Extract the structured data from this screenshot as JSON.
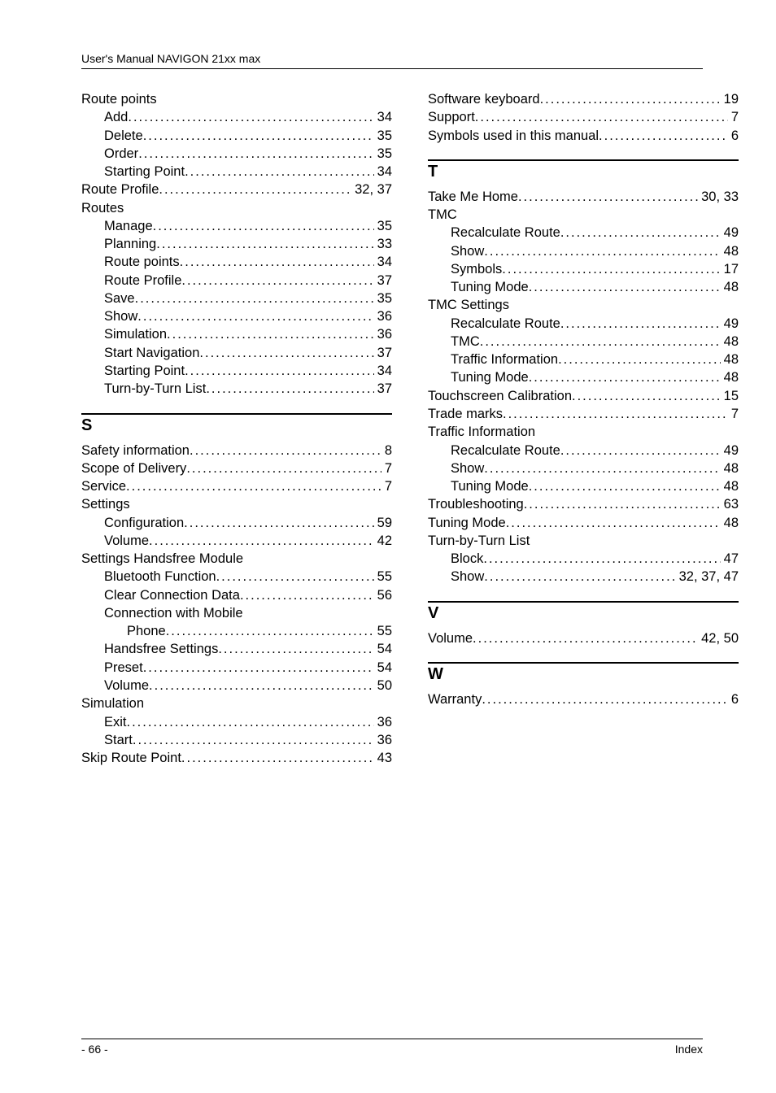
{
  "header": {
    "text": "User's Manual NAVIGON 21xx max"
  },
  "footer": {
    "left": "- 66 -",
    "right": "Index"
  },
  "left_column": {
    "blocks": [
      {
        "type": "group",
        "heading": "Route points",
        "entries": [
          {
            "label": "Add",
            "page": "34",
            "indent": 1
          },
          {
            "label": "Delete",
            "page": "35",
            "indent": 1
          },
          {
            "label": "Order",
            "page": "35",
            "indent": 1
          },
          {
            "label": "Starting Point",
            "page": "34",
            "indent": 1
          }
        ]
      },
      {
        "type": "entries",
        "entries": [
          {
            "label": "Route Profile",
            "page": "32, 37",
            "indent": 0
          }
        ]
      },
      {
        "type": "group",
        "heading": "Routes",
        "entries": [
          {
            "label": "Manage",
            "page": "35",
            "indent": 1
          },
          {
            "label": "Planning",
            "page": "33",
            "indent": 1
          },
          {
            "label": "Route points",
            "page": "34",
            "indent": 1
          },
          {
            "label": "Route Profile",
            "page": "37",
            "indent": 1
          },
          {
            "label": "Save",
            "page": "35",
            "indent": 1
          },
          {
            "label": "Show",
            "page": "36",
            "indent": 1
          },
          {
            "label": "Simulation",
            "page": "36",
            "indent": 1
          },
          {
            "label": "Start Navigation",
            "page": "37",
            "indent": 1
          },
          {
            "label": "Starting Point",
            "page": "34",
            "indent": 1
          },
          {
            "label": "Turn-by-Turn List",
            "page": "37",
            "indent": 1
          }
        ]
      },
      {
        "type": "section",
        "letter": "S",
        "children": [
          {
            "type": "entries",
            "entries": [
              {
                "label": "Safety information",
                "page": "8",
                "indent": 0
              },
              {
                "label": "Scope of Delivery",
                "page": "7",
                "indent": 0
              },
              {
                "label": "Service",
                "page": "7",
                "indent": 0
              }
            ]
          },
          {
            "type": "group",
            "heading": "Settings",
            "entries": [
              {
                "label": "Configuration",
                "page": "59",
                "indent": 1
              },
              {
                "label": "Volume",
                "page": "42",
                "indent": 1
              }
            ]
          },
          {
            "type": "group",
            "heading": "Settings Handsfree Module",
            "entries": [
              {
                "label": "Bluetooth Function",
                "page": "55",
                "indent": 1
              },
              {
                "label": "Clear Connection Data",
                "page": "56",
                "indent": 1
              },
              {
                "label": "Connection with Mobile",
                "page": "",
                "indent": 1,
                "nodots": true
              },
              {
                "label": "Phone",
                "page": "55",
                "indent": 2
              },
              {
                "label": "Handsfree Settings",
                "page": "54",
                "indent": 1
              },
              {
                "label": "Preset",
                "page": "54",
                "indent": 1
              },
              {
                "label": "Volume",
                "page": "50",
                "indent": 1
              }
            ]
          },
          {
            "type": "group",
            "heading": "Simulation",
            "entries": [
              {
                "label": "Exit",
                "page": "36",
                "indent": 1
              },
              {
                "label": "Start",
                "page": "36",
                "indent": 1
              }
            ]
          },
          {
            "type": "entries",
            "entries": [
              {
                "label": "Skip Route Point",
                "page": "43",
                "indent": 0
              }
            ]
          }
        ]
      }
    ]
  },
  "right_column": {
    "blocks": [
      {
        "type": "entries",
        "entries": [
          {
            "label": "Software keyboard",
            "page": "19",
            "indent": 0
          },
          {
            "label": "Support",
            "page": "7",
            "indent": 0
          },
          {
            "label": "Symbols used in this manual",
            "page": "6",
            "indent": 0
          }
        ]
      },
      {
        "type": "section",
        "letter": "T",
        "children": [
          {
            "type": "entries",
            "entries": [
              {
                "label": "Take Me Home",
                "page": "30, 33",
                "indent": 0
              }
            ]
          },
          {
            "type": "group",
            "heading": "TMC",
            "entries": [
              {
                "label": "Recalculate Route",
                "page": "49",
                "indent": 1
              },
              {
                "label": "Show",
                "page": "48",
                "indent": 1
              },
              {
                "label": "Symbols",
                "page": "17",
                "indent": 1
              },
              {
                "label": "Tuning Mode",
                "page": "48",
                "indent": 1
              }
            ]
          },
          {
            "type": "group",
            "heading": "TMC Settings",
            "entries": [
              {
                "label": "Recalculate Route",
                "page": "49",
                "indent": 1
              },
              {
                "label": "TMC",
                "page": "48",
                "indent": 1
              },
              {
                "label": "Traffic Information",
                "page": "48",
                "indent": 1
              },
              {
                "label": "Tuning Mode",
                "page": "48",
                "indent": 1
              }
            ]
          },
          {
            "type": "entries",
            "entries": [
              {
                "label": "Touchscreen Calibration",
                "page": "15",
                "indent": 0
              },
              {
                "label": "Trade marks",
                "page": "7",
                "indent": 0
              }
            ]
          },
          {
            "type": "group",
            "heading": "Traffic Information",
            "entries": [
              {
                "label": "Recalculate Route",
                "page": "49",
                "indent": 1
              },
              {
                "label": "Show",
                "page": "48",
                "indent": 1
              },
              {
                "label": "Tuning Mode",
                "page": "48",
                "indent": 1
              }
            ]
          },
          {
            "type": "entries",
            "entries": [
              {
                "label": "Troubleshooting",
                "page": "63",
                "indent": 0
              },
              {
                "label": "Tuning Mode",
                "page": "48",
                "indent": 0
              }
            ]
          },
          {
            "type": "group",
            "heading": "Turn-by-Turn List",
            "entries": [
              {
                "label": "Block",
                "page": "47",
                "indent": 1
              },
              {
                "label": "Show",
                "page": "32, 37, 47",
                "indent": 1
              }
            ]
          }
        ]
      },
      {
        "type": "section",
        "letter": "V",
        "children": [
          {
            "type": "entries",
            "entries": [
              {
                "label": "Volume",
                "page": "42, 50",
                "indent": 0
              }
            ]
          }
        ]
      },
      {
        "type": "section",
        "letter": "W",
        "children": [
          {
            "type": "entries",
            "entries": [
              {
                "label": "Warranty",
                "page": "6",
                "indent": 0
              }
            ]
          }
        ]
      }
    ]
  }
}
